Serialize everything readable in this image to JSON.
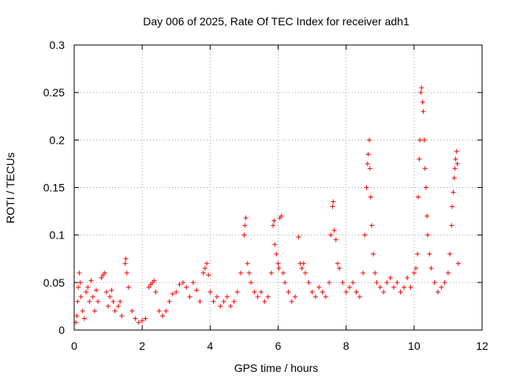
{
  "chart_data": {
    "type": "scatter",
    "title": "Day 006 of 2025, Rate Of TEC Index for receiver adh1",
    "xlabel": "GPS time / hours",
    "ylabel": "ROTI / TECUs",
    "xlim": [
      0,
      12
    ],
    "ylim": [
      0,
      0.3
    ],
    "x_ticks": [
      0,
      2,
      4,
      6,
      8,
      10,
      12
    ],
    "x_tick_labels": [
      "0",
      "2",
      "4",
      "6",
      "8",
      "10",
      "12"
    ],
    "y_ticks": [
      0,
      0.05,
      0.1,
      0.15,
      0.2,
      0.25,
      0.3
    ],
    "y_tick_labels": [
      "0",
      "0.05",
      "0.1",
      "0.15",
      "0.2",
      "0.25",
      "0.3"
    ],
    "grid": true,
    "marker": "+",
    "series": [
      {
        "name": "ROTI",
        "color": "#ff0000",
        "points": [
          [
            0.05,
            0.008
          ],
          [
            0.08,
            0.015
          ],
          [
            0.1,
            0.03
          ],
          [
            0.12,
            0.045
          ],
          [
            0.15,
            0.06
          ],
          [
            0.18,
            0.05
          ],
          [
            0.2,
            0.035
          ],
          [
            0.25,
            0.02
          ],
          [
            0.3,
            0.012
          ],
          [
            0.35,
            0.04
          ],
          [
            0.4,
            0.045
          ],
          [
            0.45,
            0.03
          ],
          [
            0.5,
            0.052
          ],
          [
            0.55,
            0.035
          ],
          [
            0.6,
            0.02
          ],
          [
            0.65,
            0.042
          ],
          [
            0.7,
            0.03
          ],
          [
            0.8,
            0.055
          ],
          [
            0.85,
            0.058
          ],
          [
            0.9,
            0.06
          ],
          [
            0.95,
            0.04
          ],
          [
            1.0,
            0.025
          ],
          [
            1.05,
            0.035
          ],
          [
            1.1,
            0.042
          ],
          [
            1.15,
            0.03
          ],
          [
            1.2,
            0.02
          ],
          [
            1.3,
            0.025
          ],
          [
            1.35,
            0.03
          ],
          [
            1.4,
            0.015
          ],
          [
            1.5,
            0.07
          ],
          [
            1.52,
            0.075
          ],
          [
            1.55,
            0.06
          ],
          [
            1.6,
            0.045
          ],
          [
            1.7,
            0.02
          ],
          [
            1.8,
            0.012
          ],
          [
            1.9,
            0.008
          ],
          [
            2.0,
            0.01
          ],
          [
            2.1,
            0.012
          ],
          [
            2.2,
            0.045
          ],
          [
            2.25,
            0.048
          ],
          [
            2.3,
            0.05
          ],
          [
            2.35,
            0.052
          ],
          [
            2.4,
            0.04
          ],
          [
            2.5,
            0.02
          ],
          [
            2.6,
            0.015
          ],
          [
            2.7,
            0.02
          ],
          [
            2.8,
            0.03
          ],
          [
            2.9,
            0.038
          ],
          [
            3.0,
            0.04
          ],
          [
            3.1,
            0.048
          ],
          [
            3.2,
            0.05
          ],
          [
            3.3,
            0.045
          ],
          [
            3.4,
            0.035
          ],
          [
            3.5,
            0.05
          ],
          [
            3.6,
            0.042
          ],
          [
            3.7,
            0.03
          ],
          [
            3.8,
            0.06
          ],
          [
            3.85,
            0.065
          ],
          [
            3.9,
            0.07
          ],
          [
            3.95,
            0.058
          ],
          [
            4.0,
            0.04
          ],
          [
            4.1,
            0.03
          ],
          [
            4.2,
            0.035
          ],
          [
            4.3,
            0.025
          ],
          [
            4.4,
            0.03
          ],
          [
            4.5,
            0.035
          ],
          [
            4.6,
            0.025
          ],
          [
            4.7,
            0.03
          ],
          [
            4.8,
            0.04
          ],
          [
            4.9,
            0.06
          ],
          [
            5.0,
            0.1
          ],
          [
            5.02,
            0.11
          ],
          [
            5.05,
            0.118
          ],
          [
            5.1,
            0.07
          ],
          [
            5.15,
            0.06
          ],
          [
            5.2,
            0.05
          ],
          [
            5.3,
            0.04
          ],
          [
            5.4,
            0.035
          ],
          [
            5.5,
            0.04
          ],
          [
            5.6,
            0.03
          ],
          [
            5.7,
            0.035
          ],
          [
            5.8,
            0.06
          ],
          [
            5.85,
            0.11
          ],
          [
            5.88,
            0.115
          ],
          [
            5.9,
            0.09
          ],
          [
            5.95,
            0.08
          ],
          [
            6.0,
            0.07
          ],
          [
            6.02,
            0.065
          ],
          [
            6.05,
            0.118
          ],
          [
            6.1,
            0.12
          ],
          [
            6.15,
            0.06
          ],
          [
            6.2,
            0.05
          ],
          [
            6.3,
            0.04
          ],
          [
            6.4,
            0.03
          ],
          [
            6.5,
            0.035
          ],
          [
            6.6,
            0.098
          ],
          [
            6.65,
            0.07
          ],
          [
            6.7,
            0.065
          ],
          [
            6.75,
            0.07
          ],
          [
            6.8,
            0.06
          ],
          [
            6.9,
            0.05
          ],
          [
            7.0,
            0.04
          ],
          [
            7.1,
            0.035
          ],
          [
            7.2,
            0.045
          ],
          [
            7.3,
            0.04
          ],
          [
            7.4,
            0.035
          ],
          [
            7.5,
            0.05
          ],
          [
            7.55,
            0.1
          ],
          [
            7.6,
            0.13
          ],
          [
            7.62,
            0.135
          ],
          [
            7.65,
            0.105
          ],
          [
            7.7,
            0.095
          ],
          [
            7.75,
            0.07
          ],
          [
            7.8,
            0.065
          ],
          [
            7.9,
            0.05
          ],
          [
            8.0,
            0.04
          ],
          [
            8.1,
            0.045
          ],
          [
            8.2,
            0.05
          ],
          [
            8.3,
            0.04
          ],
          [
            8.4,
            0.035
          ],
          [
            8.5,
            0.06
          ],
          [
            8.55,
            0.1
          ],
          [
            8.6,
            0.15
          ],
          [
            8.63,
            0.175
          ],
          [
            8.65,
            0.185
          ],
          [
            8.68,
            0.2
          ],
          [
            8.7,
            0.17
          ],
          [
            8.72,
            0.14
          ],
          [
            8.75,
            0.11
          ],
          [
            8.8,
            0.08
          ],
          [
            8.85,
            0.06
          ],
          [
            8.9,
            0.05
          ],
          [
            9.0,
            0.045
          ],
          [
            9.1,
            0.04
          ],
          [
            9.2,
            0.05
          ],
          [
            9.3,
            0.055
          ],
          [
            9.4,
            0.045
          ],
          [
            9.5,
            0.05
          ],
          [
            9.6,
            0.04
          ],
          [
            9.7,
            0.045
          ],
          [
            9.8,
            0.055
          ],
          [
            9.9,
            0.045
          ],
          [
            10.0,
            0.06
          ],
          [
            10.05,
            0.065
          ],
          [
            10.1,
            0.08
          ],
          [
            10.12,
            0.14
          ],
          [
            10.15,
            0.18
          ],
          [
            10.17,
            0.2
          ],
          [
            10.2,
            0.25
          ],
          [
            10.22,
            0.255
          ],
          [
            10.25,
            0.24
          ],
          [
            10.27,
            0.23
          ],
          [
            10.3,
            0.2
          ],
          [
            10.32,
            0.17
          ],
          [
            10.35,
            0.15
          ],
          [
            10.38,
            0.12
          ],
          [
            10.4,
            0.1
          ],
          [
            10.45,
            0.08
          ],
          [
            10.5,
            0.065
          ],
          [
            10.6,
            0.05
          ],
          [
            10.7,
            0.04
          ],
          [
            10.8,
            0.045
          ],
          [
            10.9,
            0.05
          ],
          [
            11.0,
            0.06
          ],
          [
            11.05,
            0.08
          ],
          [
            11.1,
            0.11
          ],
          [
            11.12,
            0.13
          ],
          [
            11.15,
            0.145
          ],
          [
            11.18,
            0.16
          ],
          [
            11.2,
            0.17
          ],
          [
            11.22,
            0.18
          ],
          [
            11.25,
            0.188
          ],
          [
            11.27,
            0.175
          ],
          [
            11.3,
            0.07
          ]
        ]
      }
    ]
  }
}
